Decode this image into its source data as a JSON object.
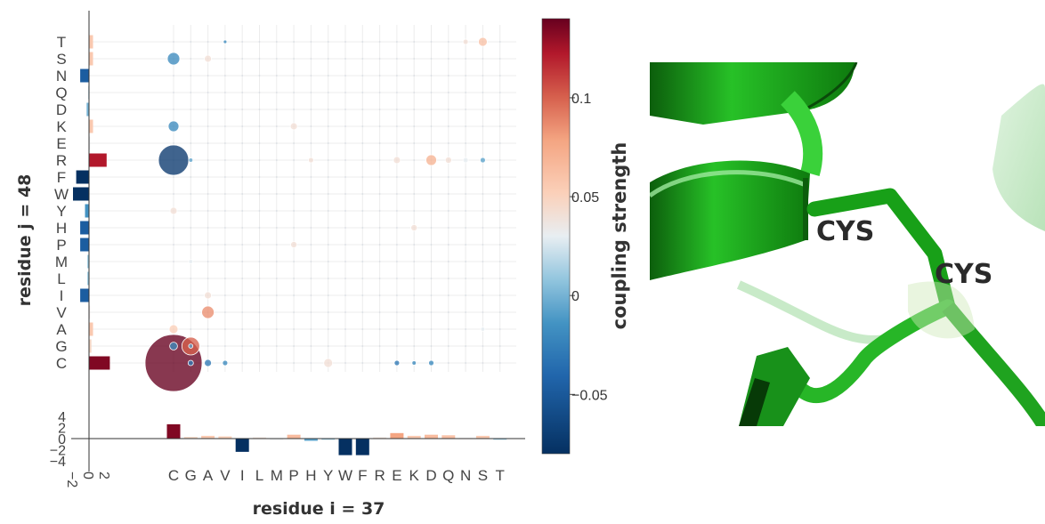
{
  "chart_data": {
    "type": "scatter",
    "xlabel": "residue i = 37",
    "ylabel": "residue j = 48",
    "x_categories": [
      "C",
      "G",
      "A",
      "V",
      "I",
      "L",
      "M",
      "P",
      "H",
      "Y",
      "W",
      "F",
      "R",
      "E",
      "K",
      "D",
      "Q",
      "N",
      "S",
      "T"
    ],
    "y_categories": [
      "C",
      "G",
      "A",
      "V",
      "I",
      "L",
      "M",
      "P",
      "H",
      "Y",
      "W",
      "F",
      "R",
      "E",
      "K",
      "D",
      "Q",
      "N",
      "S",
      "T"
    ],
    "colorbar": {
      "title": "coupling strength",
      "range": [
        -0.08,
        0.14
      ],
      "ticks": [
        {
          "value": 0.1,
          "label": "0.1"
        },
        {
          "value": 0.05,
          "label": "0.05"
        },
        {
          "value": 0,
          "label": "0"
        },
        {
          "value": -0.05,
          "label": "−0.05"
        }
      ]
    },
    "bottom_marginal": {
      "ylim": [
        -4,
        4
      ],
      "tick_labels": [
        "4",
        "2",
        "0",
        "−2",
        "−4"
      ],
      "tick_values": [
        4,
        2,
        0,
        -2,
        -4
      ],
      "values": [
        2.6,
        0.3,
        0.5,
        0.4,
        -2.4,
        0.2,
        0,
        0.7,
        -0.4,
        -0.2,
        -3.0,
        -3.0,
        0.2,
        1.0,
        0.5,
        0.7,
        0.6,
        0.1,
        0.5,
        -0.2
      ]
    },
    "left_marginal": {
      "xlim": [
        -2,
        3
      ],
      "tick_labels": [
        "−2",
        "0",
        "2"
      ],
      "tick_values": [
        -2,
        0,
        2
      ],
      "values": [
        2.6,
        0.3,
        0.5,
        0.1,
        -1.1,
        -0.2,
        -0.2,
        -1.1,
        -1.1,
        -0.5,
        -2.0,
        -1.6,
        2.2,
        0.05,
        0.5,
        -0.3,
        -0.1,
        -1.1,
        0.5,
        0.5
      ]
    },
    "points": [
      {
        "x": "C",
        "y": "C",
        "size": 1.6,
        "value": 0.14
      },
      {
        "x": "G",
        "y": "G",
        "size": 0.5,
        "value": 0.08
      },
      {
        "x": "C",
        "y": "R",
        "size": 0.85,
        "value": -0.075
      },
      {
        "x": "C",
        "y": "S",
        "size": 0.35,
        "value": -0.03
      },
      {
        "x": "C",
        "y": "K",
        "size": 0.3,
        "value": -0.03
      },
      {
        "x": "C",
        "y": "G",
        "size": 0.22,
        "value": -0.03
      },
      {
        "x": "A",
        "y": "V",
        "size": 0.35,
        "value": 0.06
      },
      {
        "x": "C",
        "y": "A",
        "size": 0.25,
        "value": 0.02
      },
      {
        "x": "C",
        "y": "Y",
        "size": 0.2,
        "value": 0.01
      },
      {
        "x": "A",
        "y": "I",
        "size": 0.2,
        "value": 0.01
      },
      {
        "x": "A",
        "y": "S",
        "size": 0.2,
        "value": 0.01
      },
      {
        "x": "G",
        "y": "C",
        "size": 0.15,
        "value": -0.04
      },
      {
        "x": "A",
        "y": "C",
        "size": 0.2,
        "value": -0.04
      },
      {
        "x": "V",
        "y": "C",
        "size": 0.15,
        "value": -0.03
      },
      {
        "x": "Y",
        "y": "C",
        "size": 0.25,
        "value": 0.01
      },
      {
        "x": "E",
        "y": "C",
        "size": 0.15,
        "value": -0.04
      },
      {
        "x": "K",
        "y": "C",
        "size": 0.12,
        "value": -0.03
      },
      {
        "x": "D",
        "y": "C",
        "size": 0.15,
        "value": -0.03
      },
      {
        "x": "P",
        "y": "P",
        "size": 0.18,
        "value": 0.01
      },
      {
        "x": "K",
        "y": "H",
        "size": 0.18,
        "value": 0.01
      },
      {
        "x": "P",
        "y": "K",
        "size": 0.2,
        "value": 0.01
      },
      {
        "x": "D",
        "y": "R",
        "size": 0.3,
        "value": 0.04
      },
      {
        "x": "E",
        "y": "R",
        "size": 0.2,
        "value": 0.01
      },
      {
        "x": "Q",
        "y": "R",
        "size": 0.18,
        "value": 0.01
      },
      {
        "x": "N",
        "y": "R",
        "size": 0.15,
        "value": 0.0
      },
      {
        "x": "S",
        "y": "R",
        "size": 0.15,
        "value": -0.02
      },
      {
        "x": "H",
        "y": "R",
        "size": 0.15,
        "value": 0.01
      },
      {
        "x": "S",
        "y": "T",
        "size": 0.25,
        "value": 0.03
      },
      {
        "x": "N",
        "y": "T",
        "size": 0.15,
        "value": 0.01
      },
      {
        "x": "G",
        "y": "G",
        "size": 0.12,
        "value": -0.02
      },
      {
        "x": "G",
        "y": "M",
        "size": 0.12,
        "value": 0.0
      },
      {
        "x": "S",
        "y": "A",
        "size": 0.12,
        "value": 0.0
      },
      {
        "x": "G",
        "y": "R",
        "size": 0.12,
        "value": -0.02
      },
      {
        "x": "V",
        "y": "T",
        "size": 0.1,
        "value": -0.03
      }
    ]
  },
  "structure": {
    "labels": [
      "CYS",
      "CYS"
    ],
    "ribbon_color": "#1fa31f"
  }
}
